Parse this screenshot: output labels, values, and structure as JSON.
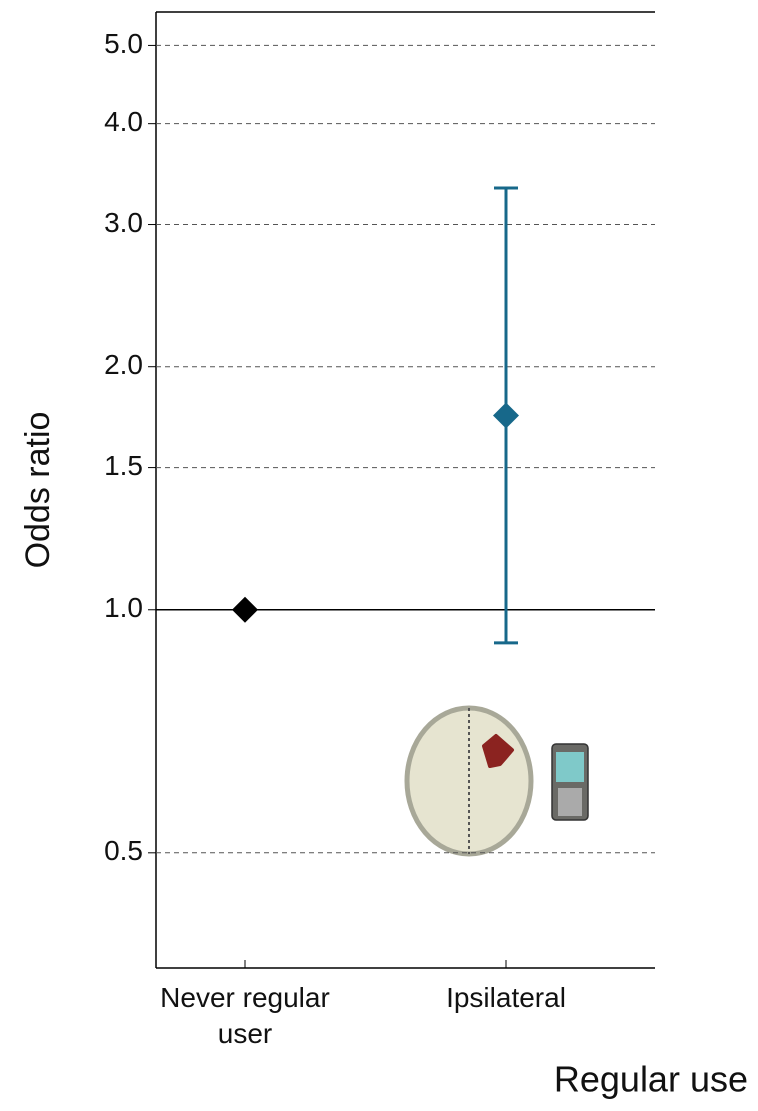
{
  "chart_data": {
    "type": "errorbar",
    "x_label": "Regular use",
    "y_label": "Odds ratio",
    "log_y": true,
    "grid": true,
    "reference_line": 1,
    "categories": [
      "Never regular user",
      "Ipsilateral"
    ],
    "series": [
      {
        "values": [
          1,
          1.74
        ],
        "lower": [
          null,
          0.91
        ],
        "upper": [
          null,
          3.33
        ],
        "colors": [
          "#000000",
          "#17688a"
        ]
      }
    ],
    "ylim": [
      0.36,
      5.5
    ],
    "yticks": [
      {
        "value": 0.5,
        "label": "0.5"
      },
      {
        "value": 1,
        "label": "1.0"
      },
      {
        "value": 1.5,
        "label": "1.5"
      },
      {
        "value": 2,
        "label": "2.0"
      },
      {
        "value": 3,
        "label": "3.0"
      },
      {
        "value": 4,
        "label": "4.0"
      },
      {
        "value": 5,
        "label": "5.0"
      }
    ]
  }
}
